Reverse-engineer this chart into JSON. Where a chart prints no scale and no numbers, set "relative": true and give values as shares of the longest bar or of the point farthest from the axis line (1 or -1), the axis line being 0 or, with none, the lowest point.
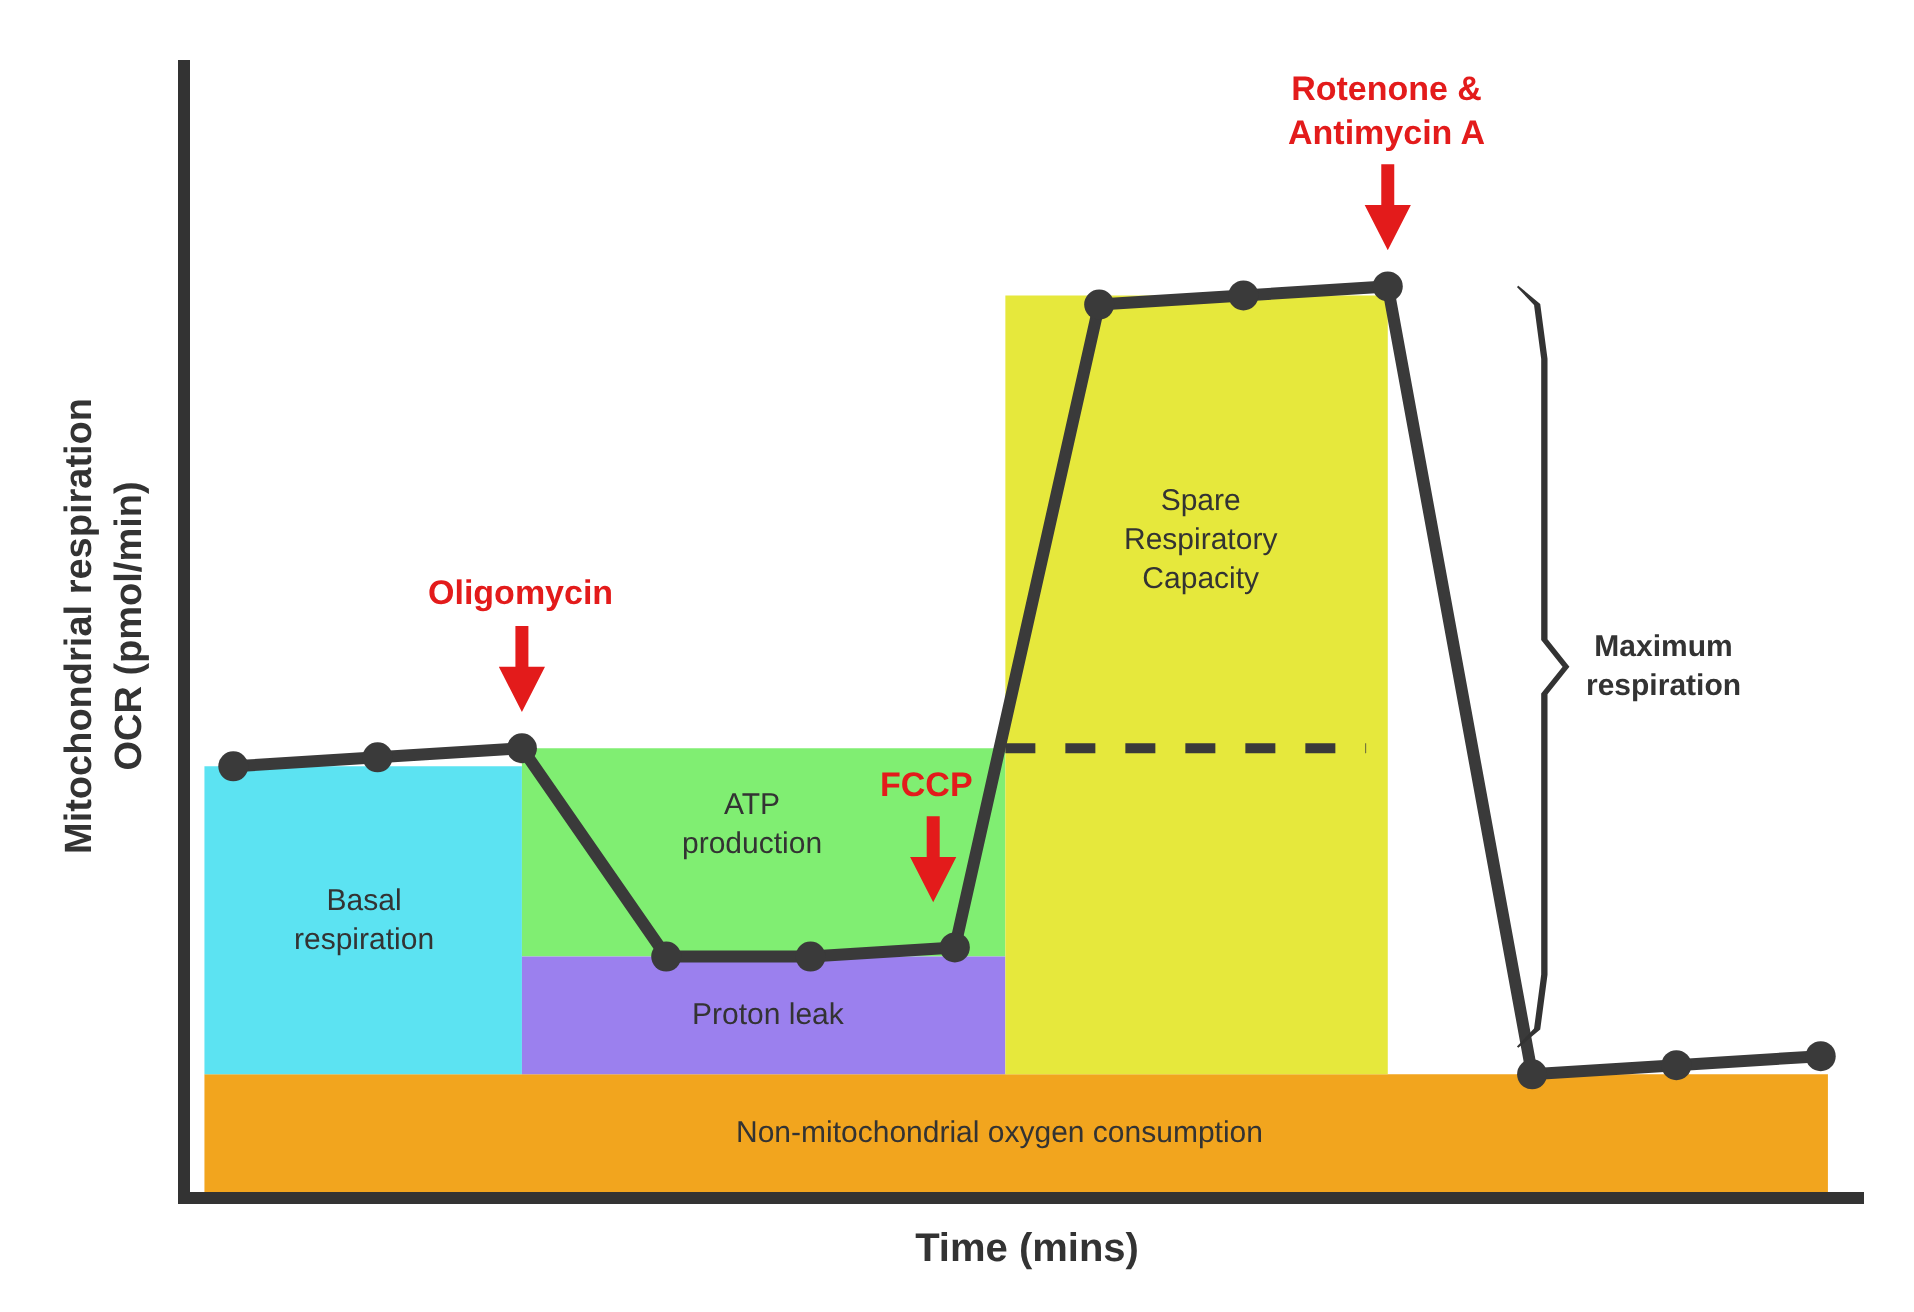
{
  "chart_data": {
    "type": "line",
    "relative": true,
    "xlabel": "Time (mins)",
    "ylabel": "Mitochondrial respiration\nOCR (pmol/min)",
    "categories": [
      null,
      null,
      null,
      null,
      null,
      null,
      null,
      null,
      null,
      null,
      null,
      null
    ],
    "marker": "circle",
    "line_style": "solid",
    "series": [
      {
        "color": "#3a3a3a",
        "values": [
          0.47,
          0.48,
          0.49,
          0.26,
          0.26,
          0.27,
          0.98,
          0.99,
          1.0,
          0.13,
          0.14,
          0.15
        ]
      }
    ],
    "annotations": [
      "Non-mitochondrial oxygen consumption",
      "Basal\nrespiration",
      "ATP\nproduction",
      "Proton leak",
      "Spare\nRespiratory\nCapacity",
      "Oligomycin",
      "FCCP",
      "Rotenone &\nAntimycin A",
      "Maximum\nrespiration"
    ]
  }
}
